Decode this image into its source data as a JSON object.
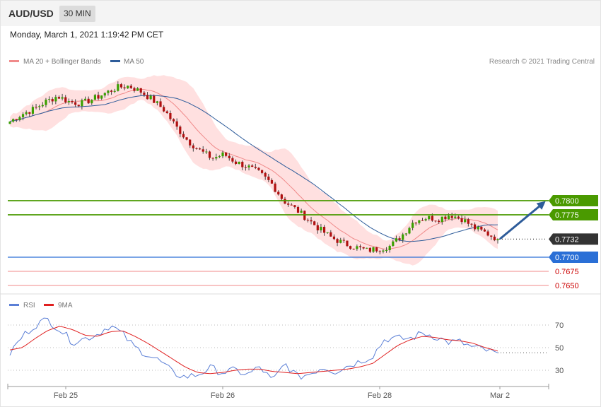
{
  "header": {
    "symbol": "AUD/USD",
    "timeframe": "30 MIN",
    "datetime": "Monday, March 1, 2021 1:19:42 PM CET"
  },
  "legend": {
    "ma20_label": "MA 20 + Bollinger Bands",
    "ma50_label": "MA 50",
    "credit": "Research © 2021 Trading Central",
    "ma20_color": "#f08a8a",
    "ma50_color": "#2e5c9a"
  },
  "rsi_legend": {
    "rsi_label": "RSI",
    "ma_label": "9MA",
    "rsi_color": "#5b7fd6",
    "ma_color": "#e02020"
  },
  "chart_data": [
    {
      "type": "candlestick",
      "title": "AUD/USD 30 MIN",
      "ylim": [
        0.765,
        0.7825
      ],
      "x_ticks": [
        "Feb 25",
        "Feb 26",
        "Feb 28",
        "Mar 2"
      ],
      "levels": [
        {
          "value": 0.78,
          "label": "0.7800",
          "color": "#4a9a00",
          "kind": "resistance"
        },
        {
          "value": 0.7775,
          "label": "0.7775",
          "color": "#4a9a00",
          "kind": "resistance"
        },
        {
          "value": 0.7732,
          "label": "0.7732",
          "color": "#333333",
          "kind": "current"
        },
        {
          "value": 0.77,
          "label": "0.7700",
          "color": "#2a6fd6",
          "kind": "pivot"
        },
        {
          "value": 0.7675,
          "label": "0.7675",
          "color": "#cc0000",
          "kind": "support"
        },
        {
          "value": 0.765,
          "label": "0.7650",
          "color": "#cc0000",
          "kind": "support"
        }
      ],
      "price_path": [
        0.794,
        0.7953,
        0.7962,
        0.7975,
        0.7985,
        0.7975,
        0.7972,
        0.798,
        0.799,
        0.8,
        0.8003,
        0.7993,
        0.7978,
        0.796,
        0.793,
        0.7905,
        0.7888,
        0.7875,
        0.7882,
        0.7868,
        0.786,
        0.7848,
        0.783,
        0.78,
        0.7785,
        0.7768,
        0.775,
        0.7735,
        0.7725,
        0.7718,
        0.7712,
        0.7715,
        0.772,
        0.774,
        0.7765,
        0.777,
        0.7768,
        0.7775,
        0.7768,
        0.7752,
        0.7743,
        0.7732
      ],
      "projection": {
        "from": 0.7732,
        "to": 0.78
      }
    },
    {
      "type": "line",
      "title": "RSI",
      "ylim": [
        20,
        80
      ],
      "y_ticks": [
        70,
        50,
        30
      ],
      "series": [
        {
          "name": "RSI",
          "values": [
            45,
            60,
            70,
            75,
            66,
            55,
            58,
            62,
            70,
            62,
            50,
            44,
            38,
            28,
            24,
            26,
            32,
            28,
            30,
            26,
            33,
            20,
            36,
            24,
            27,
            33,
            29,
            34,
            38,
            43,
            58,
            58,
            58,
            63,
            60,
            55,
            55,
            50,
            48,
            44
          ]
        },
        {
          "name": "9MA",
          "values": [
            48,
            50,
            58,
            65,
            69,
            66,
            61,
            60,
            64,
            65,
            60,
            54,
            47,
            40,
            33,
            28,
            27,
            28,
            30,
            31,
            31,
            29,
            28,
            27,
            28,
            29,
            30,
            31,
            33,
            36,
            44,
            52,
            57,
            60,
            59,
            57,
            56,
            54,
            50,
            47
          ]
        }
      ]
    }
  ]
}
